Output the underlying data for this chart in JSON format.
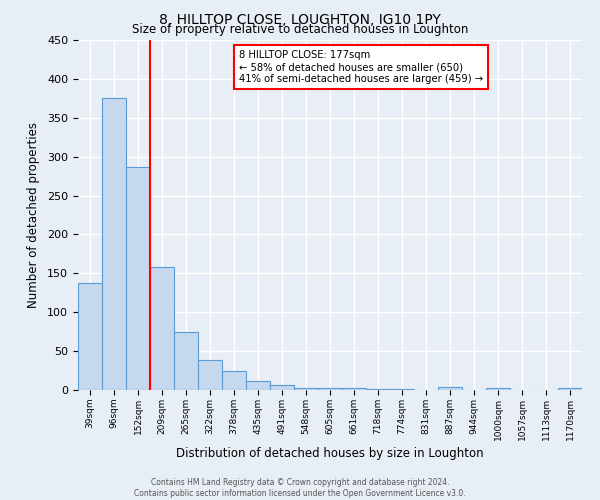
{
  "title": "8, HILLTOP CLOSE, LOUGHTON, IG10 1PY",
  "subtitle": "Size of property relative to detached houses in Loughton",
  "xlabel": "Distribution of detached houses by size in Loughton",
  "ylabel": "Number of detached properties",
  "bar_color": "#c5d8ed",
  "bar_edgecolor": "#5b9bd5",
  "background_color": "#e8eef5",
  "grid_color": "#ffffff",
  "categories": [
    "39sqm",
    "96sqm",
    "152sqm",
    "209sqm",
    "265sqm",
    "322sqm",
    "378sqm",
    "435sqm",
    "491sqm",
    "548sqm",
    "605sqm",
    "661sqm",
    "718sqm",
    "774sqm",
    "831sqm",
    "887sqm",
    "944sqm",
    "1000sqm",
    "1057sqm",
    "1113sqm",
    "1170sqm"
  ],
  "values": [
    137,
    375,
    287,
    158,
    75,
    38,
    25,
    11,
    7,
    3,
    2,
    2,
    1,
    1,
    0,
    4,
    0,
    2,
    0,
    0,
    2
  ],
  "ylim": [
    0,
    450
  ],
  "yticks": [
    0,
    50,
    100,
    150,
    200,
    250,
    300,
    350,
    400,
    450
  ],
  "red_line_x": 2.5,
  "annotation_title": "8 HILLTOP CLOSE: 177sqm",
  "annotation_line1": "← 58% of detached houses are smaller (650)",
  "annotation_line2": "41% of semi-detached houses are larger (459) →",
  "footer_line1": "Contains HM Land Registry data © Crown copyright and database right 2024.",
  "footer_line2": "Contains public sector information licensed under the Open Government Licence v3.0."
}
